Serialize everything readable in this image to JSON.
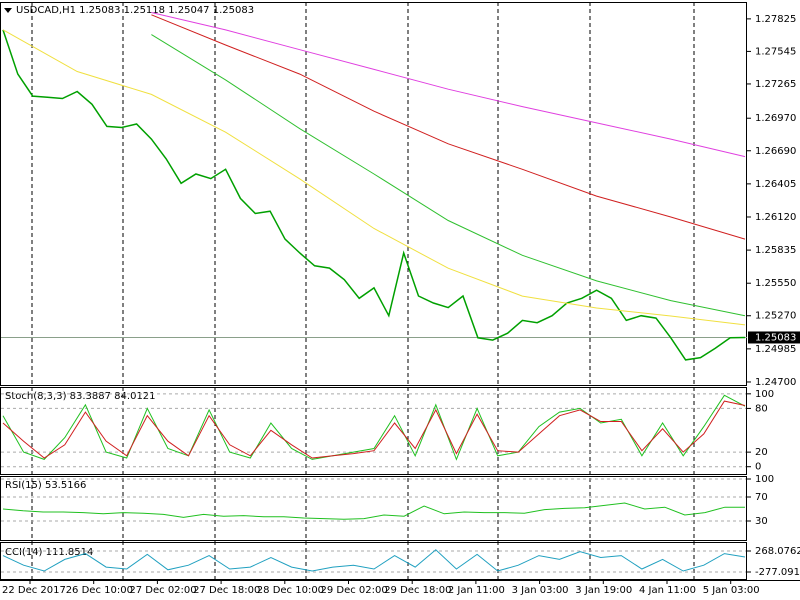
{
  "chart_data": [
    {
      "type": "line",
      "title": "USDCAD,H1 1.25083 1.25118 1.25047 1.25083",
      "ylim": [
        1.24674,
        1.27953
      ],
      "yticks": [
        1.27825,
        1.27545,
        1.27265,
        {
          "value": 1.2697,
          "label": "1.26970"
        },
        {
          "value": 1.2669,
          "label": "1.26690"
        },
        1.26405,
        {
          "value": 1.2612,
          "label": "1.26120"
        },
        1.25835,
        {
          "value": 1.2555,
          "label": "1.25550"
        },
        {
          "value": 1.2527,
          "label": "1.25270"
        },
        1.24985,
        {
          "value": 1.247,
          "label": "1.24700"
        }
      ],
      "last_price": 1.25083,
      "xtick_labels": [
        "22 Dec 2017",
        "26 Dec 10:00",
        "27 Dec 02:00",
        "27 Dec 18:00",
        "28 Dec 10:00",
        "29 Dec 02:00",
        "29 Dec 18:00",
        "2 Jan 11:00",
        "3 Jan 03:00",
        "3 Jan 19:00",
        "4 Jan 11:00",
        "5 Jan 03:00"
      ],
      "series": [
        {
          "color": "#00a000",
          "values": [
            1.2773,
            1.2735,
            1.2716,
            1.2715,
            1.2714,
            1.272,
            1.2709,
            1.269,
            1.2689,
            1.2692,
            1.2679,
            1.2662,
            1.2641,
            1.2649,
            1.2645,
            1.2653,
            1.2628,
            1.2615,
            1.2617,
            1.2593,
            1.2581,
            1.257,
            1.2568,
            1.2558,
            1.2542,
            1.2551,
            1.2527,
            1.2581,
            1.2544,
            1.2538,
            1.2534,
            1.2544,
            1.2508,
            1.2506,
            1.2512,
            1.2523,
            1.2521,
            1.2527,
            1.2538,
            1.2542,
            1.2549,
            1.2542,
            1.2523,
            1.2527,
            1.2525,
            1.2508,
            1.2489,
            1.2491,
            1.2499,
            1.2508,
            1.25083
          ]
        },
        {
          "color": "#f0e040",
          "values": [
            1.27731,
            1.27372,
            1.27175,
            1.2685,
            1.26448,
            1.26021,
            1.25679,
            1.25439,
            1.25337,
            1.25268,
            1.25191
          ]
        },
        {
          "color": "#30c030",
          "values": [
            null,
            null,
            1.2769,
            1.273,
            1.2688,
            1.2649,
            1.2609,
            1.2579,
            1.2557,
            1.254,
            1.2527
          ]
        },
        {
          "color": "#d02020",
          "values": [
            null,
            null,
            1.2786,
            1.276,
            1.2735,
            1.2703,
            1.2675,
            1.2653,
            1.263,
            1.2612,
            1.2593
          ]
        },
        {
          "color": "#e040e0",
          "values": [
            null,
            null,
            1.2788,
            1.2773,
            1.2756,
            1.2739,
            1.2722,
            1.2707,
            1.2693,
            1.2679,
            1.2664
          ]
        }
      ]
    },
    {
      "type": "line",
      "title": "Stoch(8,3,3) 83.3887 84.0121",
      "ylim": [
        -10,
        108
      ],
      "yticks": [
        100,
        80,
        20,
        0
      ],
      "series": [
        {
          "color": "#20c020",
          "values": [
            70,
            20,
            10,
            40,
            85,
            20,
            12,
            80,
            25,
            15,
            78,
            20,
            12,
            60,
            25,
            10,
            15,
            20,
            25,
            70,
            15,
            85,
            10,
            80,
            15,
            20,
            55,
            75,
            80,
            60,
            65,
            15,
            60,
            15,
            55,
            98,
            83
          ]
        },
        {
          "color": "#d02020",
          "values": [
            60,
            35,
            12,
            30,
            75,
            35,
            15,
            70,
            35,
            15,
            70,
            30,
            15,
            50,
            30,
            12,
            15,
            18,
            22,
            60,
            25,
            78,
            18,
            72,
            22,
            20,
            45,
            70,
            78,
            62,
            62,
            22,
            52,
            20,
            45,
            90,
            84
          ]
        }
      ]
    },
    {
      "type": "line",
      "title": "RSI(15) 53.5166",
      "ylim": [
        0,
        100
      ],
      "yticks": [
        100,
        70,
        30
      ],
      "series": [
        {
          "color": "#20c020",
          "values": [
            50,
            47,
            45,
            45,
            44,
            42,
            44,
            43,
            41,
            36,
            41,
            38,
            39,
            37,
            37,
            35,
            34,
            33,
            34,
            40,
            38,
            55,
            42,
            45,
            44,
            44,
            43,
            49,
            51,
            52,
            56,
            60,
            50,
            53,
            40,
            44,
            53,
            53
          ]
        }
      ]
    },
    {
      "type": "line",
      "title": "CCI(14) 111.8514",
      "ylim": [
        -433,
        502
      ],
      "yticks": [
        268.0762,
        -277.0915
      ],
      "series": [
        {
          "color": "#20a0c0",
          "values": [
            150,
            -100,
            -250,
            50,
            200,
            -150,
            -200,
            180,
            -220,
            -100,
            150,
            -200,
            -150,
            100,
            -150,
            -250,
            -150,
            -100,
            -200,
            150,
            -150,
            300,
            -200,
            180,
            -250,
            -100,
            150,
            50,
            250,
            100,
            150,
            -200,
            50,
            -250,
            -100,
            200,
            112
          ]
        }
      ]
    }
  ]
}
